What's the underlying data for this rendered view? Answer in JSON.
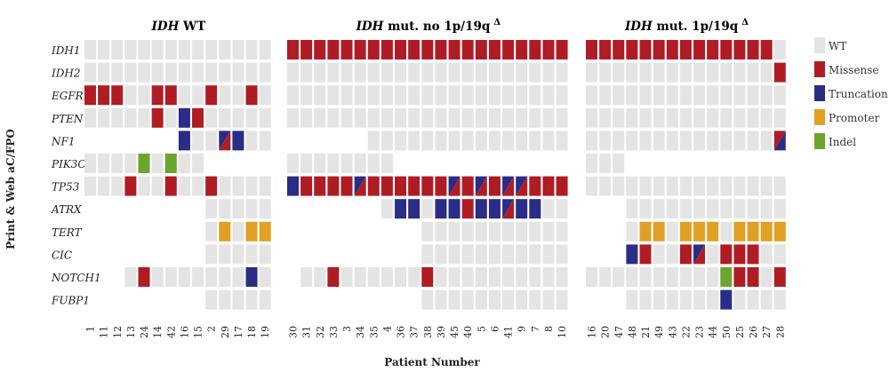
{
  "chart_data": {
    "type": "heatmap",
    "xlabel": "Patient Number",
    "ylabel": "Print & Web aC/FPO",
    "genes": [
      "IDH1",
      "IDH2",
      "EGFR",
      "PTEN",
      "NF1",
      "PIK3CA",
      "TP53",
      "ATRX",
      "TERT",
      "CIC",
      "NOTCH1",
      "FUBP1"
    ],
    "colors": {
      "WT": "#e4e4e4",
      "M": "#b01c24",
      "T": "#2a2d86",
      "P": "#dfa024",
      "I": "#6aa52c",
      "MT": "split-missense-truncation"
    },
    "legend": [
      {
        "key": "WT",
        "label": "WT",
        "color": "#e4e4e4"
      },
      {
        "key": "M",
        "label": "Missense",
        "color": "#b01c24"
      },
      {
        "key": "T",
        "label": "Truncation",
        "color": "#2a2d86"
      },
      {
        "key": "P",
        "label": "Promoter",
        "color": "#dfa024"
      },
      {
        "key": "I",
        "label": "Indel",
        "color": "#6aa52c"
      }
    ],
    "groups": [
      {
        "title_italic": "IDH",
        "title_rest": " WT",
        "title_symbol": "",
        "patients": [
          "1",
          "11",
          "12",
          "13",
          "24",
          "14",
          "42",
          "16",
          "15",
          "2",
          "29",
          "17",
          "18",
          "19"
        ],
        "grid": [
          "WT WT WT WT WT WT WT WT WT WT WT WT WT WT",
          "WT WT WT WT WT WT WT WT WT WT WT WT WT WT",
          "M M M WT WT M M WT WT M WT WT M WT",
          "WT WT WT WT WT M WT T M WT WT WT WT WT",
          "_ _ _ _ _ _ _ T WT WT MT T WT WT",
          "WT WT WT WT I WT I WT WT _ _ _ _ _",
          "WT WT WT M WT WT M WT WT M WT WT WT WT",
          "_ _ _ _ _ _ _ _ _ WT WT WT WT WT",
          "_ _ _ _ _ _ _ _ _ WT P WT P P",
          "_ _ _ _ _ _ _ _ _ WT WT WT WT WT",
          "_ _ _ WT M WT WT WT WT WT WT WT T WT",
          "_ _ _ _ _ _ _ _ _ WT WT WT WT WT"
        ]
      },
      {
        "title_italic": "IDH",
        "title_rest": " mut. no 1p/19q",
        "title_symbol": "Δ",
        "patients": [
          "30",
          "31",
          "32",
          "33",
          "3",
          "34",
          "35",
          "4",
          "36",
          "37",
          "38",
          "39",
          "45",
          "40",
          "5",
          "6",
          "41",
          "9",
          "7",
          "8",
          "10"
        ],
        "grid": [
          "M M M M M M M M M M M M M M M M M M M M M",
          "WT WT WT WT WT WT WT WT WT WT WT WT WT WT WT WT WT WT WT WT WT",
          "WT WT WT WT WT WT WT WT WT WT WT WT WT WT WT WT WT WT WT WT WT",
          "WT WT WT WT WT WT WT WT WT WT WT WT WT WT WT WT WT WT WT WT WT",
          "_ _ _ _ _ _ WT WT WT WT WT WT WT WT WT WT WT WT WT WT WT",
          "WT WT WT WT WT WT WT WT _ _ _ _ _ _ _ _ _ _ _ _ _",
          "T M M M M MT M M M M M M MT M MT M MT MT M M M",
          "_ _ _ _ _ _ _ WT T T WT T T M T T MT T T WT WT",
          "_ _ _ _ _ _ _ _ _ _ WT WT WT WT WT WT WT WT WT WT WT",
          "_ _ _ _ _ _ _ _ _ _ WT WT WT WT WT WT WT WT WT WT WT",
          "_ WT WT M WT WT WT WT WT WT M WT WT WT WT WT WT WT WT WT WT",
          "_ _ _ _ _ _ _ _ _ _ WT WT WT WT WT WT WT WT WT WT WT"
        ]
      },
      {
        "title_italic": "IDH",
        "title_rest": " mut. 1p/19q",
        "title_symbol": "Δ",
        "patients": [
          "16",
          "20",
          "47",
          "48",
          "21",
          "49",
          "43",
          "22",
          "23",
          "44",
          "50",
          "25",
          "26",
          "27",
          "28"
        ],
        "grid": [
          "M M M M M M M M M M M M M M WT",
          "WT WT WT WT WT WT WT WT WT WT WT WT WT WT M",
          "WT WT WT WT WT WT WT WT WT WT WT WT WT WT WT",
          "WT WT WT WT WT WT WT WT WT WT WT WT WT WT WT",
          "WT WT WT WT WT WT WT WT WT WT WT WT WT WT TM",
          "WT WT WT _ _ _ _ _ _ _ _ _ _ _ _",
          "WT WT WT WT WT WT WT WT WT WT WT WT WT WT WT",
          "_ _ _ WT WT WT WT WT WT WT WT WT WT WT WT",
          "_ _ _ WT P P WT P P P WT P P P P",
          "_ _ _ T M WT WT M MT WT M M M WT WT",
          "WT WT WT WT WT WT WT WT WT WT I M M WT M",
          "_ _ _ WT WT WT WT WT WT WT T WT WT WT WT"
        ]
      }
    ]
  }
}
